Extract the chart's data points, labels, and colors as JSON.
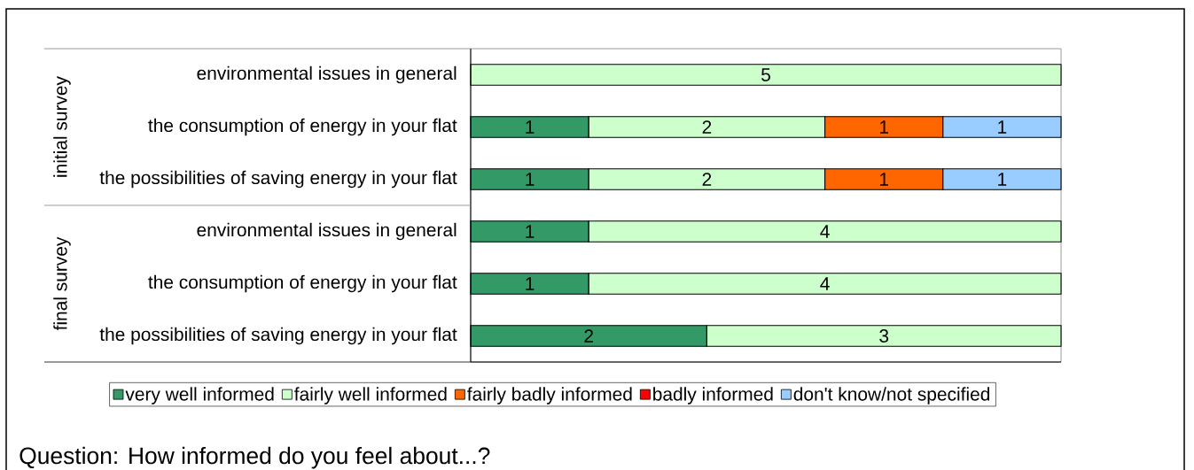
{
  "chart_data": {
    "type": "bar",
    "orientation": "horizontal",
    "stacked": true,
    "categories": [
      "environmental issues in general",
      "the consumption of energy in your flat",
      "the possibilities of saving energy in your flat",
      "environmental issues in general",
      "the consumption of energy in your flat",
      "the possibilities of saving energy in your flat"
    ],
    "series": [
      {
        "name": "very well informed",
        "color": "#339966",
        "values": [
          null,
          1,
          1,
          1,
          1,
          2
        ]
      },
      {
        "name": "fairly well informed",
        "color": "#ccffcc",
        "values": [
          5,
          2,
          2,
          4,
          4,
          3
        ]
      },
      {
        "name": "fairly badly informed",
        "color": "#ff6600",
        "values": [
          null,
          1,
          1,
          null,
          null,
          null
        ]
      },
      {
        "name": "badly informed",
        "color": "#ff0000",
        "values": [
          null,
          null,
          null,
          null,
          null,
          null
        ]
      },
      {
        "name": "don't know/not specified",
        "color": "#99ccff",
        "values": [
          null,
          1,
          1,
          null,
          null,
          null
        ]
      }
    ],
    "xlim": [
      0,
      5
    ],
    "tick_labels": "y",
    "data_labels": true,
    "legend": "bottom",
    "annotations": [
      "initial survey",
      "final survey",
      "Question: How informed do you feel about...?"
    ]
  }
}
